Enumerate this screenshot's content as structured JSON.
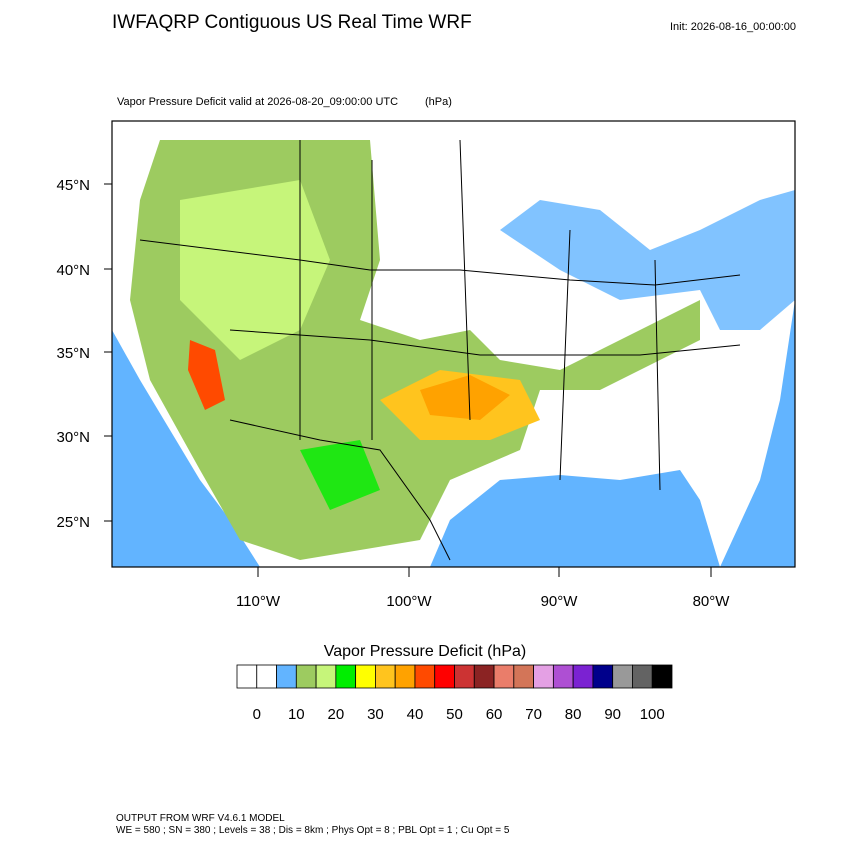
{
  "header": {
    "title": "IWFAQRP Contiguous US Real Time WRF",
    "init": "Init: 2026-08-16_00:00:00"
  },
  "map": {
    "subtitle": "Vapor Pressure Deficit valid at 2026-08-20_09:00:00 UTC",
    "units": "(hPa)",
    "lat_labels": [
      "45°N",
      "40°N",
      "35°N",
      "30°N",
      "25°N"
    ],
    "lon_labels": [
      "110°W",
      "100°W",
      "90°W",
      "80°W"
    ]
  },
  "colorbar": {
    "title": "Vapor Pressure Deficit  (hPa)",
    "colors": [
      "#ffffff",
      "#ffffff",
      "#62b4ff",
      "#9dcb60",
      "#c6f57a",
      "#00ee00",
      "#ffff00",
      "#ffc41e",
      "#ffa200",
      "#ff4a00",
      "#ff0000",
      "#cc3333",
      "#8b2323",
      "#ea7d6a",
      "#d37558",
      "#e4a0e4",
      "#ae4fd3",
      "#7b22d2",
      "#00008b",
      "#999999",
      "#636363",
      "#000000"
    ],
    "labels": [
      "0",
      "10",
      "20",
      "30",
      "40",
      "50",
      "60",
      "70",
      "80",
      "90",
      "100"
    ]
  },
  "footer": {
    "line1": "OUTPUT FROM WRF V4.6.1 MODEL",
    "line2": "WE = 580 ; SN = 380 ; Levels = 38 ; Dis = 8km ; Phys Opt = 8 ; PBL Opt = 1 ; Cu Opt = 5"
  }
}
